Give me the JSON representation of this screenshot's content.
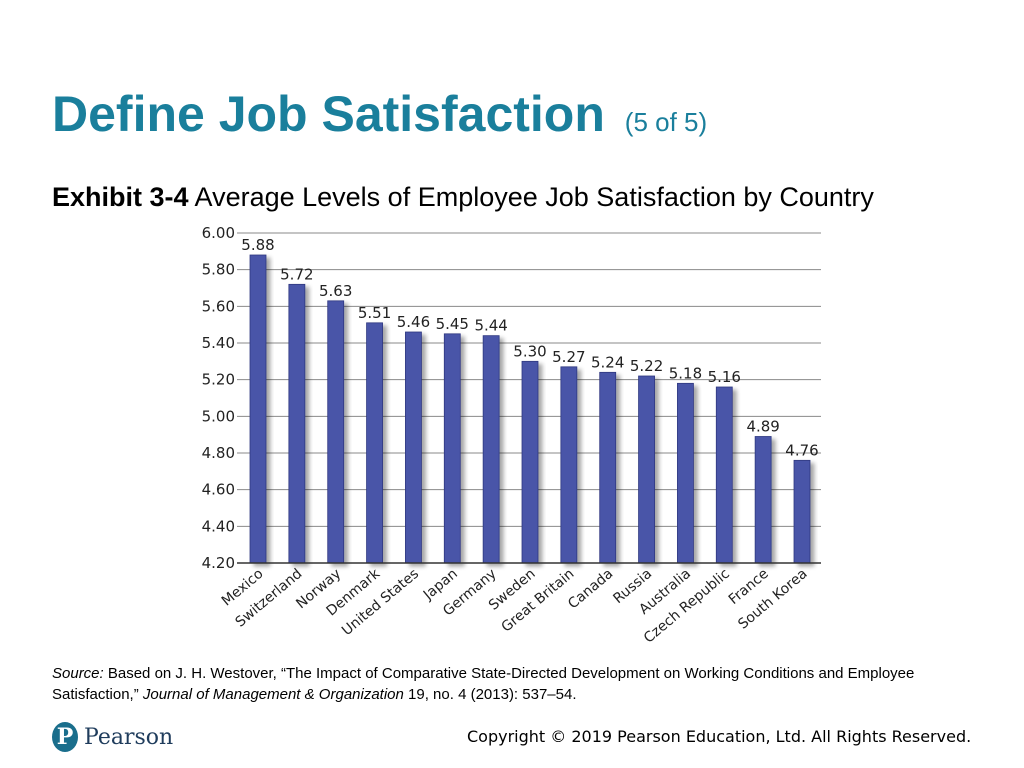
{
  "slide": {
    "title": "Define Job Satisfaction",
    "title_sub": "(5 of 5)",
    "exhibit_label": "Exhibit 3-4",
    "exhibit_title": "Average Levels of Employee Job Satisfaction by Country"
  },
  "chart_data": {
    "type": "bar",
    "categories": [
      "Mexico",
      "Switzerland",
      "Norway",
      "Denmark",
      "United States",
      "Japan",
      "Germany",
      "Sweden",
      "Great Britain",
      "Canada",
      "Russia",
      "Australia",
      "Czech Republic",
      "France",
      "South Korea"
    ],
    "values": [
      5.88,
      5.72,
      5.63,
      5.51,
      5.46,
      5.45,
      5.44,
      5.3,
      5.27,
      5.24,
      5.22,
      5.18,
      5.16,
      4.89,
      4.76
    ],
    "value_labels": [
      "5.88",
      "5.72",
      "5.63",
      "5.51",
      "5.46",
      "5.45",
      "5.44",
      "5.30",
      "5.27",
      "5.24",
      "5.22",
      "5.18",
      "5.16",
      "4.89",
      "4.76"
    ],
    "yticks": [
      "4.20",
      "4.40",
      "4.60",
      "4.80",
      "5.00",
      "5.20",
      "5.40",
      "5.60",
      "5.80",
      "6.00"
    ],
    "ylim": [
      4.2,
      6.0
    ],
    "grid": true,
    "bar_color": "#4a55a8",
    "title": "",
    "xlabel": "",
    "ylabel": ""
  },
  "source": {
    "label": "Source:",
    "text1": " Based on J. H. Westover, “The Impact of Comparative State-Directed Development on Working Conditions and Employee Satisfaction,” ",
    "journal": "Journal of Management & Organization",
    "text2": " 19, no. 4 (2013): 537–54."
  },
  "footer": {
    "logo_letter": "P",
    "logo_text": "Pearson",
    "copyright": "Copyright © 2019 Pearson Education, Ltd. All Rights Reserved."
  }
}
